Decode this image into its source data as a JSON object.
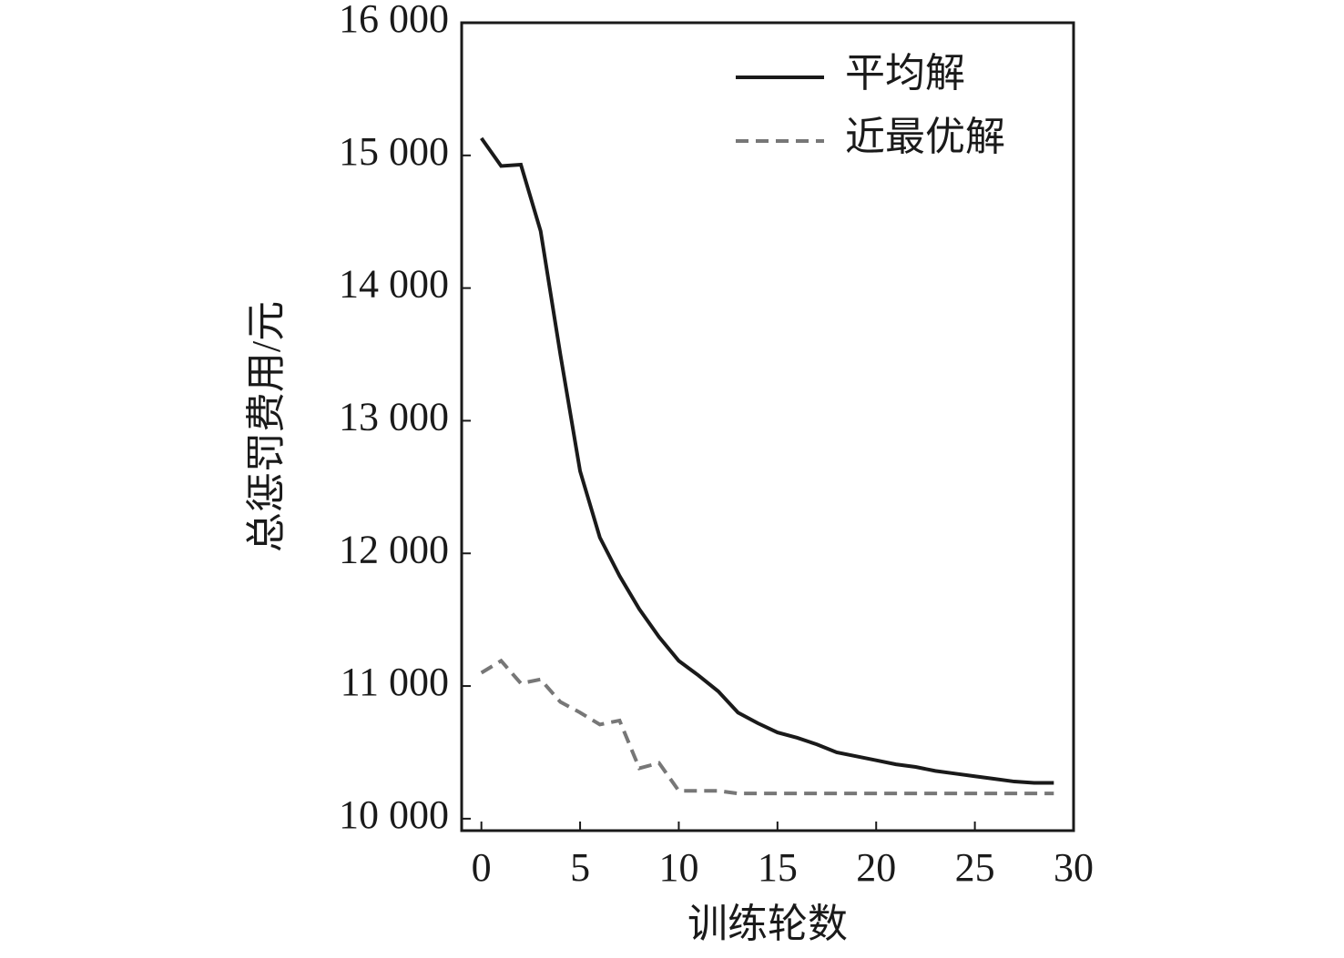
{
  "chart_data": {
    "type": "line",
    "x_label": "训练轮数",
    "y_label": "总惩罚费用/元",
    "x": [
      0,
      1,
      2,
      3,
      4,
      5,
      6,
      7,
      8,
      9,
      10,
      11,
      12,
      13,
      14,
      15,
      16,
      17,
      18,
      19,
      20,
      21,
      22,
      23,
      24,
      25,
      26,
      27,
      28,
      29
    ],
    "series": [
      {
        "name": "平均解",
        "color": "#1a1a1a",
        "dash": "solid",
        "values": [
          15130,
          14920,
          14930,
          14430,
          13500,
          12620,
          12120,
          11830,
          11580,
          11370,
          11190,
          11080,
          10960,
          10800,
          10720,
          10650,
          10610,
          10560,
          10500,
          10470,
          10440,
          10410,
          10390,
          10360,
          10340,
          10320,
          10300,
          10280,
          10270,
          10270
        ]
      },
      {
        "name": "近最优解",
        "color": "#777777",
        "dash": "dashed",
        "values": [
          11100,
          11190,
          11020,
          11050,
          10880,
          10800,
          10710,
          10740,
          10380,
          10420,
          10210,
          10210,
          10210,
          10190,
          10190,
          10190,
          10190,
          10190,
          10190,
          10190,
          10190,
          10190,
          10190,
          10190,
          10190,
          10190,
          10190,
          10190,
          10190,
          10190
        ]
      }
    ],
    "xlim": [
      -1,
      30
    ],
    "ylim": [
      9910,
      16000
    ],
    "xticks": [
      0,
      5,
      10,
      15,
      20,
      25,
      30
    ],
    "yticks": [
      {
        "value": 10000,
        "label": "10 000"
      },
      {
        "value": 11000,
        "label": "11 000"
      },
      {
        "value": 12000,
        "label": "12 000"
      },
      {
        "value": 13000,
        "label": "13 000"
      },
      {
        "value": 14000,
        "label": "14 000"
      },
      {
        "value": 15000,
        "label": "15 000"
      },
      {
        "value": 16000,
        "label": "16 000"
      }
    ],
    "legend": "upper right"
  }
}
